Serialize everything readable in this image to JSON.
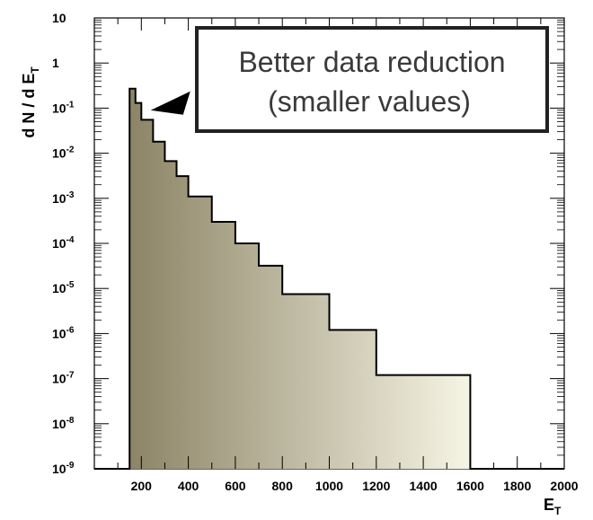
{
  "chart_data": {
    "type": "histogram",
    "x_axis": {
      "label_main": "E",
      "label_sub": "T",
      "range": [
        0,
        2000
      ],
      "ticks": [
        {
          "value": 200,
          "label": "200"
        },
        {
          "value": 400,
          "label": "400"
        },
        {
          "value": 600,
          "label": "600"
        },
        {
          "value": 800,
          "label": "800"
        },
        {
          "value": 1000,
          "label": "1000"
        },
        {
          "value": 1200,
          "label": "1200"
        },
        {
          "value": 1400,
          "label": "1400"
        },
        {
          "value": 1600,
          "label": "1600"
        },
        {
          "value": 1800,
          "label": "1800"
        },
        {
          "value": 2000,
          "label": "2000"
        }
      ]
    },
    "y_axis": {
      "label_main": "d N / d E",
      "label_sub": "T",
      "scale": "log",
      "range": [
        1e-09,
        10
      ],
      "ticks": [
        {
          "value": 10,
          "base": "10",
          "exp": ""
        },
        {
          "value": 1,
          "base": "1",
          "exp": ""
        },
        {
          "value": 0.1,
          "base": "10",
          "exp": "-1"
        },
        {
          "value": 0.01,
          "base": "10",
          "exp": "-2"
        },
        {
          "value": 0.001,
          "base": "10",
          "exp": "-3"
        },
        {
          "value": 0.0001,
          "base": "10",
          "exp": "-4"
        },
        {
          "value": 1e-05,
          "base": "10",
          "exp": "-5"
        },
        {
          "value": 1e-06,
          "base": "10",
          "exp": "-6"
        },
        {
          "value": 1e-07,
          "base": "10",
          "exp": "-7"
        },
        {
          "value": 1e-08,
          "base": "10",
          "exp": "-8"
        },
        {
          "value": 1e-09,
          "base": "10",
          "exp": "-9"
        }
      ]
    },
    "bins": [
      {
        "x0": 0,
        "x1": 150,
        "y": 1e-09
      },
      {
        "x0": 150,
        "x1": 175,
        "y": 0.27
      },
      {
        "x0": 175,
        "x1": 200,
        "y": 0.13
      },
      {
        "x0": 200,
        "x1": 250,
        "y": 0.055
      },
      {
        "x0": 250,
        "x1": 300,
        "y": 0.018
      },
      {
        "x0": 300,
        "x1": 350,
        "y": 0.0067
      },
      {
        "x0": 350,
        "x1": 400,
        "y": 0.0031
      },
      {
        "x0": 400,
        "x1": 500,
        "y": 0.0011
      },
      {
        "x0": 500,
        "x1": 600,
        "y": 0.0003
      },
      {
        "x0": 600,
        "x1": 700,
        "y": 0.0001
      },
      {
        "x0": 700,
        "x1": 800,
        "y": 3.2e-05
      },
      {
        "x0": 800,
        "x1": 1000,
        "y": 7.5e-06
      },
      {
        "x0": 1000,
        "x1": 1200,
        "y": 1.2e-06
      },
      {
        "x0": 1200,
        "x1": 1600,
        "y": 1.2e-07
      },
      {
        "x0": 1600,
        "x1": 1700,
        "y": 1e-09
      },
      {
        "x0": 1700,
        "x1": 2000,
        "y": 1e-09
      }
    ],
    "fill_gradient": {
      "start": "#8c8466",
      "end": "#f6f4e4"
    },
    "annotation": {
      "line1": "Better data reduction",
      "line2": "(smaller values)",
      "arrow_to": {
        "x": 240,
        "y": 0.09
      }
    }
  }
}
